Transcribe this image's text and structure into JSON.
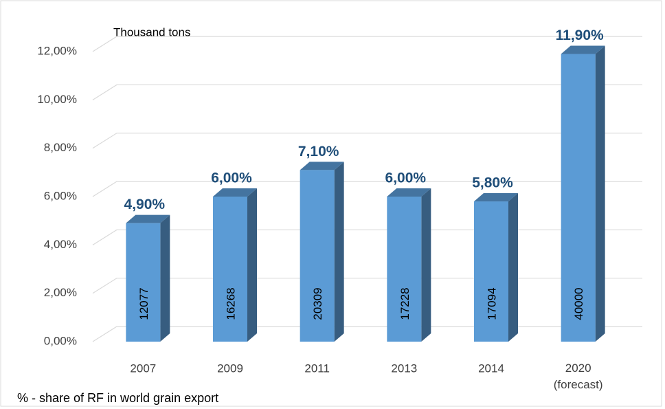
{
  "chart_data": {
    "type": "bar",
    "annotation": "Thousand tons",
    "caption": "% - share of RF in world grain export",
    "categories": [
      "2007",
      "2009",
      "2011",
      "2013",
      "2014",
      "2020 (forecast)"
    ],
    "values": [
      4.9,
      6.0,
      7.1,
      6.0,
      5.8,
      11.9
    ],
    "value_labels": [
      "4,90%",
      "6,00%",
      "7,10%",
      "6,00%",
      "5,80%",
      "11,90%"
    ],
    "tons": [
      12077,
      16268,
      20309,
      17228,
      17094,
      40000
    ],
    "color": "#5b9bd5",
    "ylim": [
      0,
      12
    ],
    "yticks": [
      {
        "value": 0,
        "label": "0,00%"
      },
      {
        "value": 2,
        "label": "2,00%"
      },
      {
        "value": 4,
        "label": "4,00%"
      },
      {
        "value": 6,
        "label": "6,00%"
      },
      {
        "value": 8,
        "label": "8,00%"
      },
      {
        "value": 10,
        "label": "10,00%"
      },
      {
        "value": 12,
        "label": "12,00%"
      }
    ],
    "grid": true
  }
}
